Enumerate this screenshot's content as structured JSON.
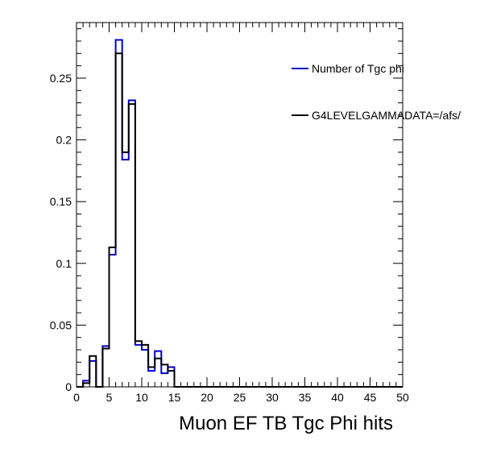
{
  "chart_data": {
    "type": "step-histogram",
    "title": "",
    "xlabel": "Muon EF TB Tgc Phi hits",
    "ylabel": "",
    "xlim": [
      0,
      50
    ],
    "ylim": [
      0,
      0.295
    ],
    "bin_width": 1,
    "x_ticks": [
      0,
      5,
      10,
      15,
      20,
      25,
      30,
      35,
      40,
      45,
      50
    ],
    "x_tick_labels": [
      "0",
      "5",
      "10",
      "15",
      "20",
      "25",
      "30",
      "35",
      "40",
      "45",
      "50"
    ],
    "y_ticks": [
      0,
      0.05,
      0.1,
      0.15,
      0.2,
      0.25
    ],
    "y_tick_labels": [
      "0",
      "0.05",
      "0.1",
      "0.15",
      "0.2",
      "0.25"
    ],
    "grid": false,
    "legend_position": "top-right",
    "series": [
      {
        "name": "Number of Tgc phi",
        "color": "#0000cc",
        "values": [
          0,
          0.005,
          0.021,
          0,
          0.033,
          0.107,
          0.281,
          0.184,
          0.232,
          0.034,
          0.03,
          0.013,
          0.029,
          0.011,
          0.016,
          0,
          0,
          0,
          0,
          0,
          0,
          0,
          0,
          0,
          0,
          0,
          0,
          0,
          0,
          0,
          0,
          0,
          0,
          0,
          0,
          0,
          0,
          0,
          0,
          0,
          0,
          0,
          0,
          0,
          0,
          0,
          0,
          0,
          0,
          0
        ]
      },
      {
        "name": "G4LEVELGAMMADATA=/afs/",
        "color": "#000000",
        "values": [
          0,
          0.003,
          0.025,
          0,
          0.031,
          0.113,
          0.27,
          0.19,
          0.229,
          0.037,
          0.034,
          0.016,
          0.023,
          0.018,
          0.013,
          0,
          0,
          0,
          0,
          0,
          0,
          0,
          0,
          0,
          0,
          0,
          0,
          0,
          0,
          0,
          0,
          0,
          0,
          0,
          0,
          0,
          0,
          0,
          0,
          0,
          0,
          0,
          0,
          0,
          0,
          0,
          0,
          0,
          0,
          0
        ]
      }
    ]
  }
}
